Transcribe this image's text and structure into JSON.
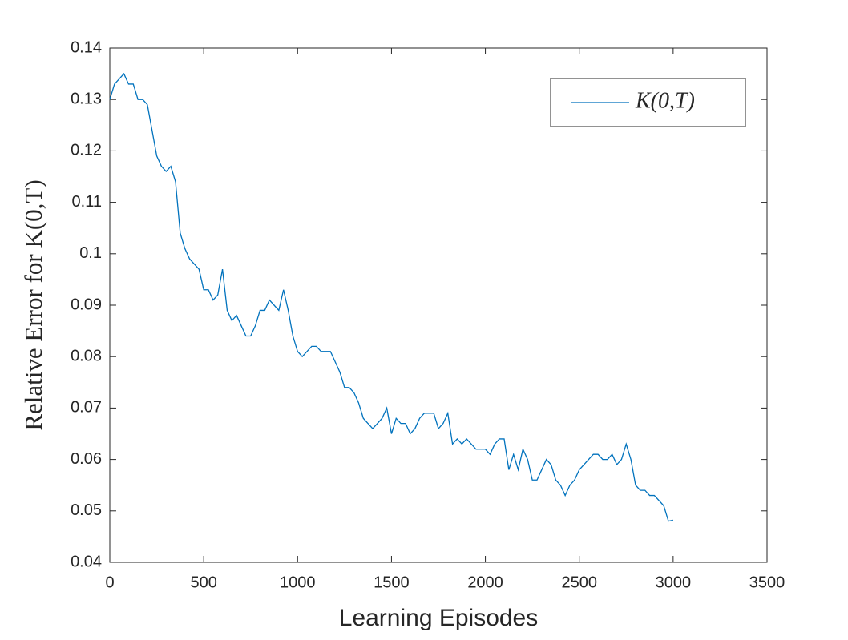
{
  "chart_data": {
    "type": "line",
    "x_label": "Learning Episodes",
    "y_label": "Relative Error for K(0,T)",
    "xlim": [
      0,
      3500
    ],
    "xticks": [
      0,
      500,
      1000,
      1500,
      2000,
      2500,
      3000,
      3500
    ],
    "ylim": [
      0.04,
      0.14
    ],
    "yticks": [
      0.04,
      0.05,
      0.06,
      0.07,
      0.08,
      0.09,
      0.1,
      0.11,
      0.12,
      0.13,
      0.14
    ],
    "legend": "upper right",
    "x": [
      0,
      25,
      50,
      75,
      100,
      125,
      150,
      175,
      200,
      225,
      250,
      275,
      300,
      325,
      350,
      375,
      400,
      425,
      450,
      475,
      500,
      525,
      550,
      575,
      600,
      625,
      650,
      675,
      700,
      725,
      750,
      775,
      800,
      825,
      850,
      875,
      900,
      925,
      950,
      975,
      1000,
      1025,
      1050,
      1075,
      1100,
      1125,
      1150,
      1175,
      1200,
      1225,
      1250,
      1275,
      1300,
      1325,
      1350,
      1375,
      1400,
      1425,
      1450,
      1475,
      1500,
      1525,
      1550,
      1575,
      1600,
      1625,
      1650,
      1675,
      1700,
      1725,
      1750,
      1775,
      1800,
      1825,
      1850,
      1875,
      1900,
      1925,
      1950,
      1975,
      2000,
      2025,
      2050,
      2075,
      2100,
      2125,
      2150,
      2175,
      2200,
      2225,
      2250,
      2275,
      2300,
      2325,
      2350,
      2375,
      2400,
      2425,
      2450,
      2475,
      2500,
      2525,
      2550,
      2575,
      2600,
      2625,
      2650,
      2675,
      2700,
      2725,
      2750,
      2775,
      2800,
      2825,
      2850,
      2875,
      2900,
      2925,
      2950,
      2975,
      3000
    ],
    "series": [
      {
        "name": "K(0,T)",
        "color": "#0072bd",
        "values": [
          0.13,
          0.133,
          0.134,
          0.135,
          0.133,
          0.133,
          0.13,
          0.13,
          0.129,
          0.124,
          0.119,
          0.117,
          0.116,
          0.117,
          0.114,
          0.104,
          0.101,
          0.099,
          0.098,
          0.097,
          0.093,
          0.093,
          0.091,
          0.092,
          0.097,
          0.089,
          0.087,
          0.088,
          0.086,
          0.084,
          0.084,
          0.086,
          0.089,
          0.089,
          0.091,
          0.09,
          0.089,
          0.093,
          0.089,
          0.084,
          0.081,
          0.08,
          0.081,
          0.082,
          0.082,
          0.081,
          0.081,
          0.081,
          0.079,
          0.077,
          0.074,
          0.074,
          0.073,
          0.071,
          0.068,
          0.067,
          0.066,
          0.067,
          0.068,
          0.07,
          0.065,
          0.068,
          0.067,
          0.067,
          0.065,
          0.066,
          0.068,
          0.069,
          0.069,
          0.069,
          0.066,
          0.067,
          0.069,
          0.063,
          0.064,
          0.063,
          0.064,
          0.063,
          0.062,
          0.062,
          0.062,
          0.061,
          0.063,
          0.064,
          0.064,
          0.058,
          0.061,
          0.058,
          0.062,
          0.06,
          0.056,
          0.056,
          0.058,
          0.06,
          0.059,
          0.056,
          0.055,
          0.053,
          0.055,
          0.056,
          0.058,
          0.059,
          0.06,
          0.061,
          0.061,
          0.06,
          0.06,
          0.061,
          0.059,
          0.06,
          0.063,
          0.06,
          0.055,
          0.054,
          0.054,
          0.053,
          0.053,
          0.052,
          0.051,
          0.048,
          0.0482
        ]
      }
    ]
  }
}
